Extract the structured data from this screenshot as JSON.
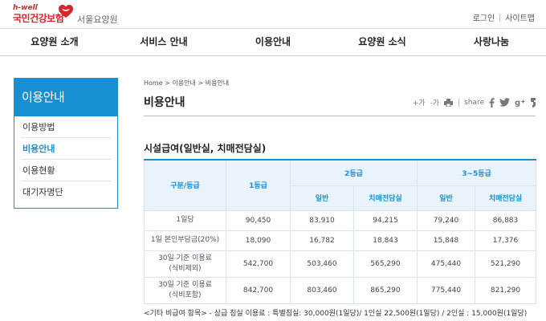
{
  "header": {
    "logo_sub": "h-well",
    "logo_main": "국민건강보험",
    "logo_branch": "서울요양원",
    "brand_color": "#d4262d",
    "util_links": [
      "로그인",
      "사이트맵"
    ]
  },
  "gnb": [
    "요양원 소개",
    "서비스 안내",
    "이용안내",
    "요양원 소식",
    "사랑나눔"
  ],
  "sidebar": {
    "title": "이용안내",
    "accent_color": "#178fd2",
    "items": [
      {
        "label": "이용방법",
        "active": false
      },
      {
        "label": "비용안내",
        "active": true
      },
      {
        "label": "이용현황",
        "active": false
      },
      {
        "label": "대기자명단",
        "active": false
      }
    ]
  },
  "content": {
    "breadcrumb": "Home > 이용안내 > 비용안내",
    "title": "비용안내",
    "tools": {
      "zoom_in": "+가",
      "zoom_out": "-가",
      "share": "share",
      "icons": [
        "zoom-in-icon",
        "zoom-out-icon",
        "print-icon",
        "facebook-icon",
        "twitter-icon",
        "google-plus-icon",
        "kakao-story-icon"
      ]
    },
    "section_title": "시설급여(일반실, 치매전담실)",
    "table": {
      "head": {
        "category": "구분/등급",
        "grade1": "1등급",
        "grade2": "2등급",
        "grade3_5": "3~5등급",
        "general": "일반",
        "dementia": "치매전담실"
      },
      "rows": [
        {
          "label1": "1일당",
          "label2": "",
          "values": [
            "90,450",
            "83,910",
            "94,215",
            "79,240",
            "86,883"
          ]
        },
        {
          "label1": "1일 본인부담금(20%)",
          "label2": "",
          "values": [
            "18,090",
            "16,782",
            "18,843",
            "15,848",
            "17,376"
          ]
        },
        {
          "label1": "30일 기준 이용료",
          "label2": "(식비제외)",
          "values": [
            "542,700",
            "503,460",
            "565,290",
            "475,440",
            "521,290"
          ]
        },
        {
          "label1": "30일 기준 이용료",
          "label2": "(식비포함)",
          "values": [
            "842,700",
            "803,460",
            "865,290",
            "775,440",
            "821,290"
          ]
        }
      ]
    },
    "note": "<기타 비급여 항목> - 상급 침실 이용료 : 특별침실: 30,000원(1일당)/ 1인실 22,500원(1일당) / 2인실 : 15,000원(1일당)"
  }
}
